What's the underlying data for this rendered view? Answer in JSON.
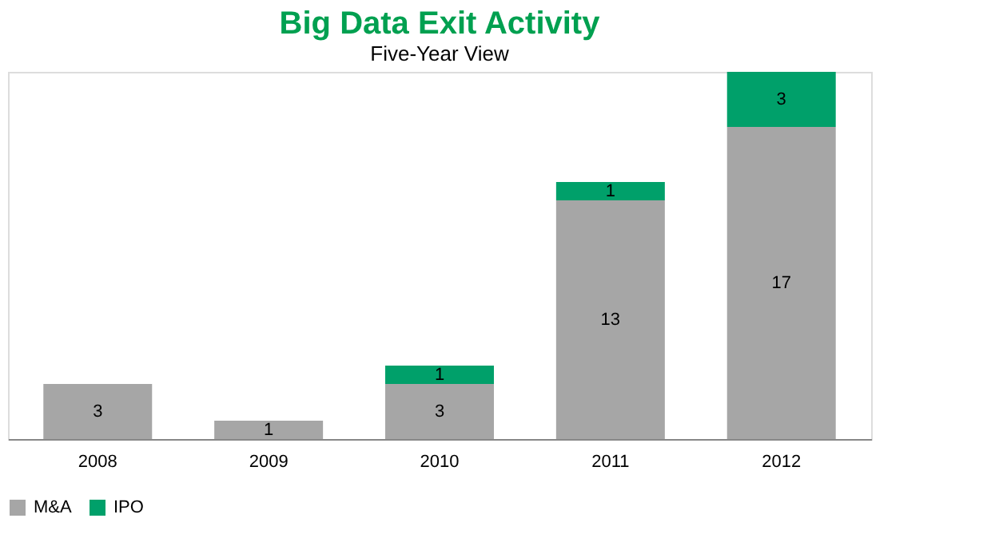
{
  "chart_data": {
    "type": "bar",
    "title": "Big Data Exit Activity",
    "subtitle": "Five-Year View",
    "categories": [
      "2008",
      "2009",
      "2010",
      "2011",
      "2012"
    ],
    "stacked": true,
    "data_labels": true,
    "legend": "bottom",
    "grid": false,
    "series": [
      {
        "name": "M&A",
        "color": "#a6a6a6",
        "values": [
          3,
          1,
          3,
          13,
          17
        ]
      },
      {
        "name": "IPO",
        "color": "#00a06a",
        "values": [
          null,
          null,
          1,
          1,
          3
        ]
      }
    ]
  }
}
